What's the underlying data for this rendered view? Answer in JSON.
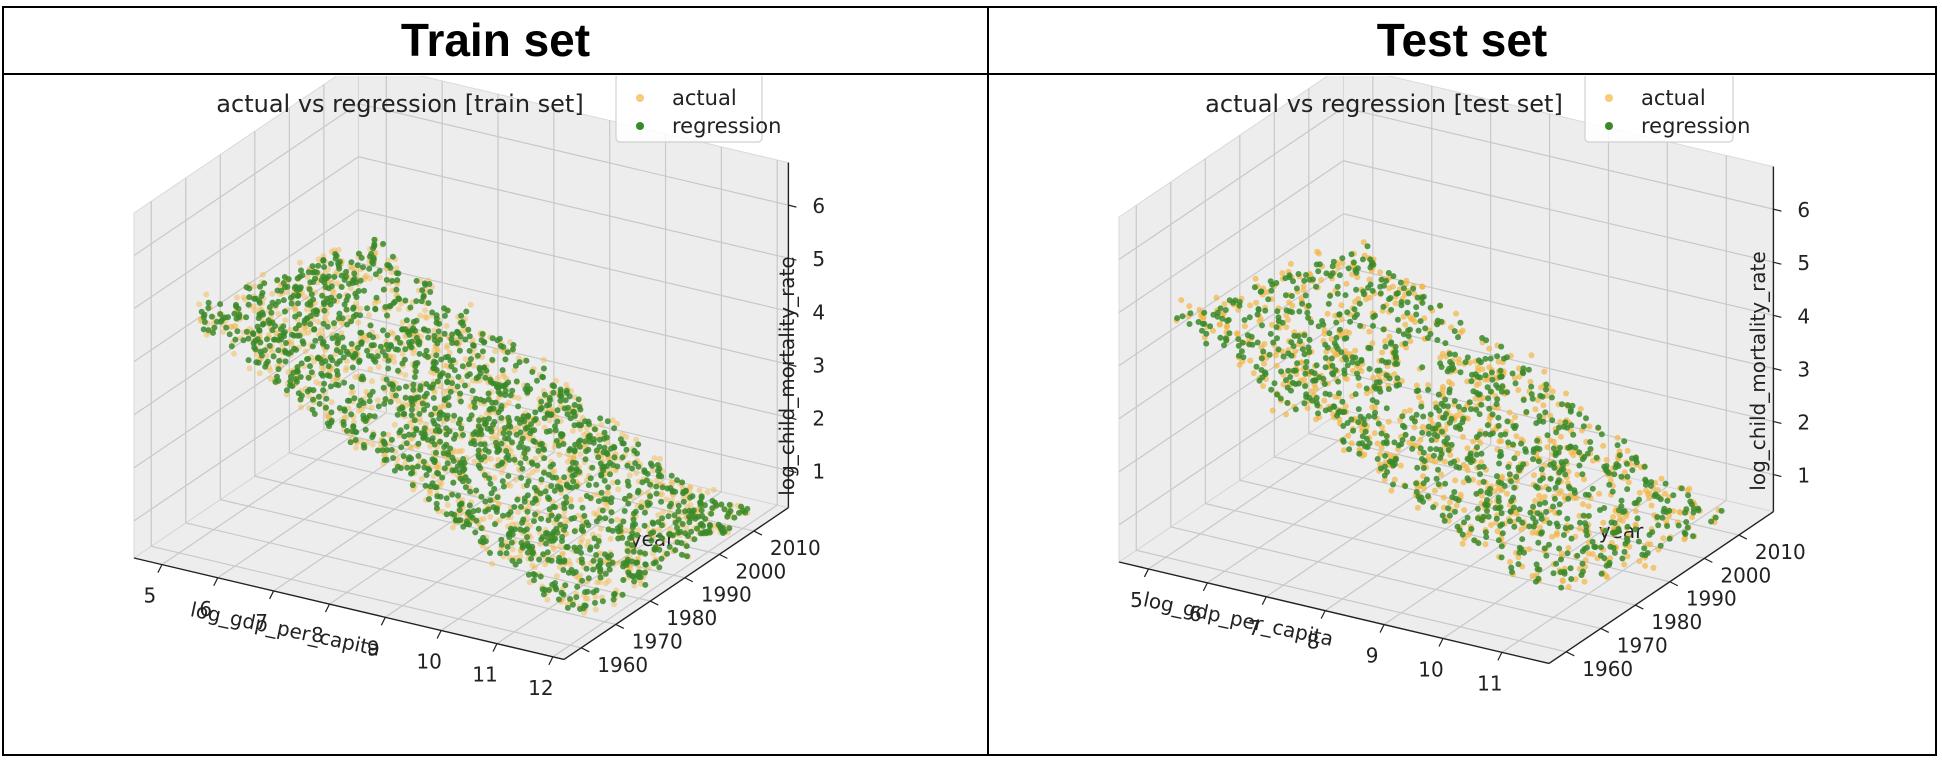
{
  "headers": {
    "left": "Train set",
    "right": "Test set"
  },
  "colors": {
    "actual": "#f2b544",
    "regression": "#3a8a2a",
    "pane": "#ececec",
    "grid": "#c8c8c8"
  },
  "chart_data": [
    {
      "type": "scatter",
      "projection": "3d",
      "title": "actual vs regression [train set]",
      "xlabel": "log_gdp_per_capita",
      "ylabel": "year",
      "zlabel": "log_child_mortality_rate",
      "xticks": [
        5,
        6,
        7,
        8,
        9,
        10,
        11,
        12
      ],
      "yticks": [
        1960,
        1970,
        1980,
        1990,
        2000,
        2010
      ],
      "zticks": [
        1,
        2,
        3,
        4,
        5,
        6
      ],
      "xlim": [
        4.5,
        12.2
      ],
      "ylim": [
        1955,
        2020
      ],
      "zlim": [
        0.3,
        6.8
      ],
      "grid": true,
      "legend": "top-right",
      "series": [
        {
          "name": "actual",
          "color": "#f2b544",
          "alpha": 0.45
        },
        {
          "name": "regression",
          "color": "#3a8a2a",
          "alpha": 0.85
        }
      ]
    },
    {
      "type": "scatter",
      "projection": "3d",
      "title": "actual vs regression [test set]",
      "xlabel": "log_gdp_per_capita",
      "ylabel": "year",
      "zlabel": "log_child_mortality_rate",
      "xticks": [
        5,
        6,
        7,
        8,
        9,
        10,
        11
      ],
      "yticks": [
        1960,
        1970,
        1980,
        1990,
        2000,
        2010
      ],
      "zticks": [
        1,
        2,
        3,
        4,
        5,
        6
      ],
      "xlim": [
        4.5,
        11.8
      ],
      "ylim": [
        1955,
        2020
      ],
      "zlim": [
        0.3,
        6.8
      ],
      "grid": true,
      "legend": "top-right",
      "series": [
        {
          "name": "actual",
          "color": "#f2b544",
          "alpha": 0.7
        },
        {
          "name": "regression",
          "color": "#3a8a2a",
          "alpha": 0.85
        }
      ]
    }
  ]
}
